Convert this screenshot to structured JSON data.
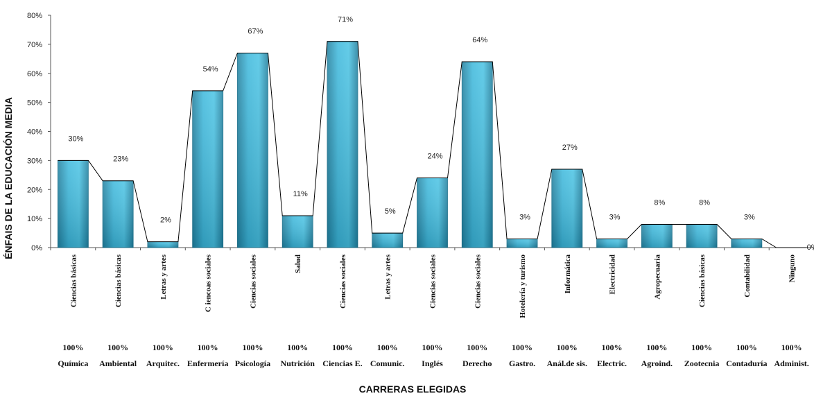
{
  "chart_data": {
    "type": "bar",
    "ylabel": "ÉNFAIS DE LA EDUCACIÓN MEDIA",
    "xlabel": "CARRERAS ELEGIDAS",
    "ylim": [
      0,
      80
    ],
    "yticks": [
      "0%",
      "10%",
      "20%",
      "30%",
      "40%",
      "50%",
      "60%",
      "70%",
      "80%"
    ],
    "ytick_values": [
      0,
      10,
      20,
      30,
      40,
      50,
      60,
      70,
      80
    ],
    "categories": [
      "Ciencias básicas",
      "Ciencias básicas",
      "Letras  y artes",
      "C iencoas sociales",
      "Ciencias sociales",
      "Salud",
      "Ciencias sociales",
      "Letras y artes",
      "Ciencias sociales",
      "Ciencias sociales",
      "Hotelería  y turismo",
      "Informática",
      "Electricidad",
      "Agropecuaria",
      "Ciencias básicas",
      "Contabilidad",
      "Ninguno"
    ],
    "values": [
      30,
      23,
      2,
      54,
      67,
      11,
      71,
      5,
      24,
      64,
      3,
      27,
      3,
      8,
      8,
      3,
      0
    ],
    "value_labels": [
      "30%",
      "23%",
      "2%",
      "54%",
      "67%",
      "11%",
      "71%",
      "5%",
      "24%",
      "64%",
      "3%",
      "27%",
      "3%",
      "8%",
      "8%",
      "3%",
      "0%"
    ],
    "percent_row": [
      "100%",
      "100%",
      "100%",
      "100%",
      "100%",
      "100%",
      "100%",
      "100%",
      "100%",
      "100%",
      "100%",
      "100%",
      "100%",
      "100%",
      "100%",
      "100%",
      "100%"
    ],
    "careers": [
      "Química",
      "Ambiental",
      "Arquitec.",
      "Enfermería",
      "Psicología",
      "Nutrición",
      "Ciencias E.",
      "Comunic.",
      "Inglés",
      "Derecho",
      "Gastro.",
      "Anál.de sis.",
      "Electric.",
      "Agroind.",
      "Zootecnia",
      "Contaduría",
      "Administ."
    ],
    "grid": false,
    "bar_color": "#3cb8dc",
    "bar_color_dark": "#1f7f9e",
    "line_color": "#000000"
  }
}
